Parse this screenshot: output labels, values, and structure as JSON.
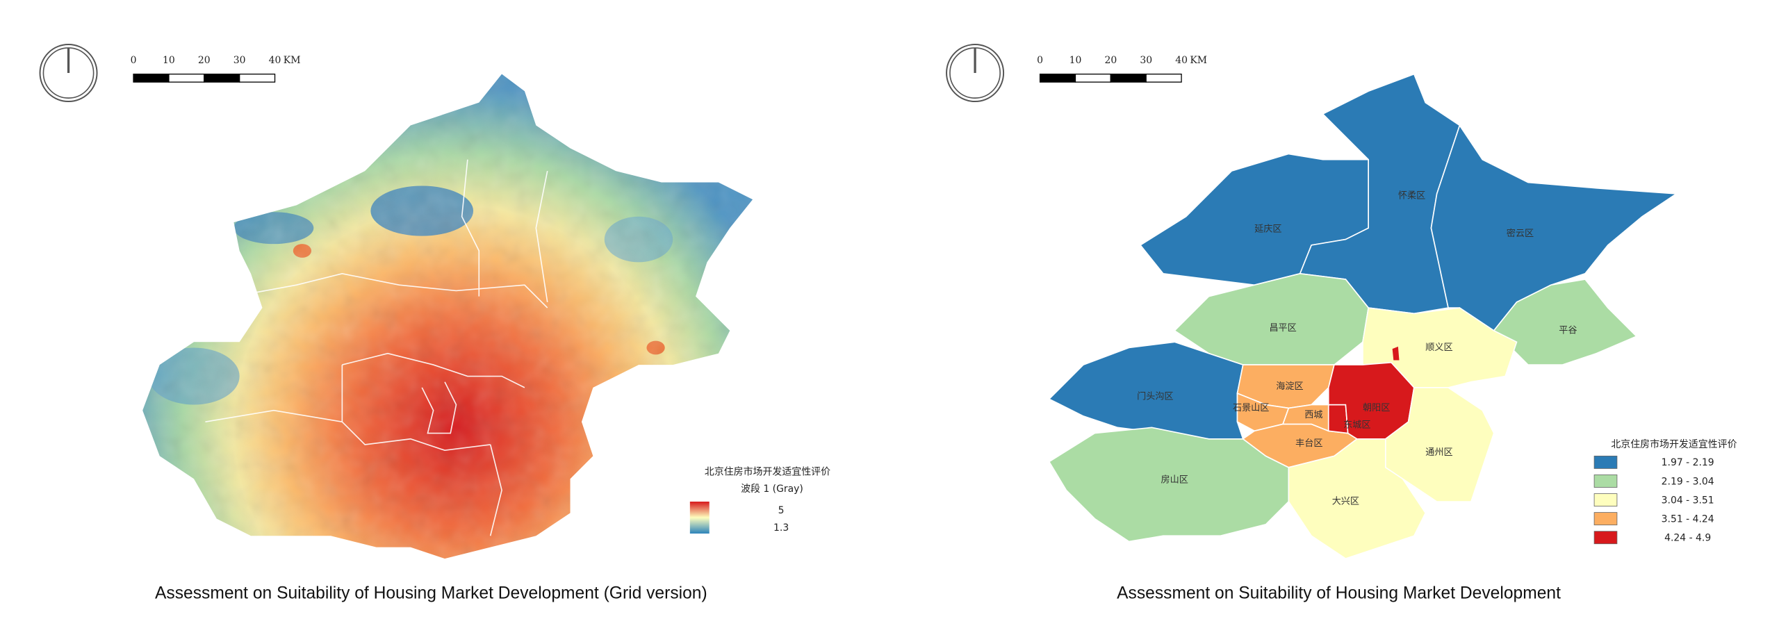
{
  "maps": [
    {
      "caption": "Assessment on Suitability of Housing Market Development (Grid version)",
      "scale_bar": {
        "ticks": [
          0,
          10,
          20,
          30,
          40
        ],
        "unit": "KM"
      },
      "legend": {
        "title": "北京住房市场开发适宜性评价",
        "band": "波段 1 (Gray)",
        "high": 5,
        "low": 1.3
      }
    },
    {
      "caption": "Assessment on Suitability of Housing Market Development",
      "scale_bar": {
        "ticks": [
          0,
          10,
          20,
          30,
          40
        ],
        "unit": "KM"
      },
      "legend": {
        "title": "北京住房市场开发适宜性评价",
        "classes": [
          {
            "label": "1.97 - 2.19",
            "color": "#2b7bb5"
          },
          {
            "label": "2.19 - 3.04",
            "color": "#abdca4"
          },
          {
            "label": "3.04 - 3.51",
            "color": "#fefebe"
          },
          {
            "label": "3.51 - 4.24",
            "color": "#fcae61"
          },
          {
            "label": "4.24 - 4.9",
            "color": "#d7191c"
          }
        ]
      },
      "districts": [
        {
          "label": "延庆区",
          "color": "#2b7bb5"
        },
        {
          "label": "怀柔区",
          "color": "#2b7bb5"
        },
        {
          "label": "密云区",
          "color": "#2b7bb5"
        },
        {
          "label": "平谷",
          "color": "#abdca4"
        },
        {
          "label": "昌平区",
          "color": "#abdca4"
        },
        {
          "label": "顺义区",
          "color": "#fefebe"
        },
        {
          "label": "门头沟区",
          "color": "#2b7bb5"
        },
        {
          "label": "房山区",
          "color": "#abdca4"
        },
        {
          "label": "海淀区",
          "color": "#fcae61"
        },
        {
          "label": "石景山区",
          "color": "#fcae61"
        },
        {
          "label": "丰台区",
          "color": "#fcae61"
        },
        {
          "label": "西城",
          "color": "#fcae61"
        },
        {
          "label": "东城区",
          "color": "#d7191c"
        },
        {
          "label": "朝阳区",
          "color": "#d7191c"
        },
        {
          "label": "通州区",
          "color": "#fefebe"
        },
        {
          "label": "大兴区",
          "color": "#fefebe"
        }
      ]
    }
  ]
}
